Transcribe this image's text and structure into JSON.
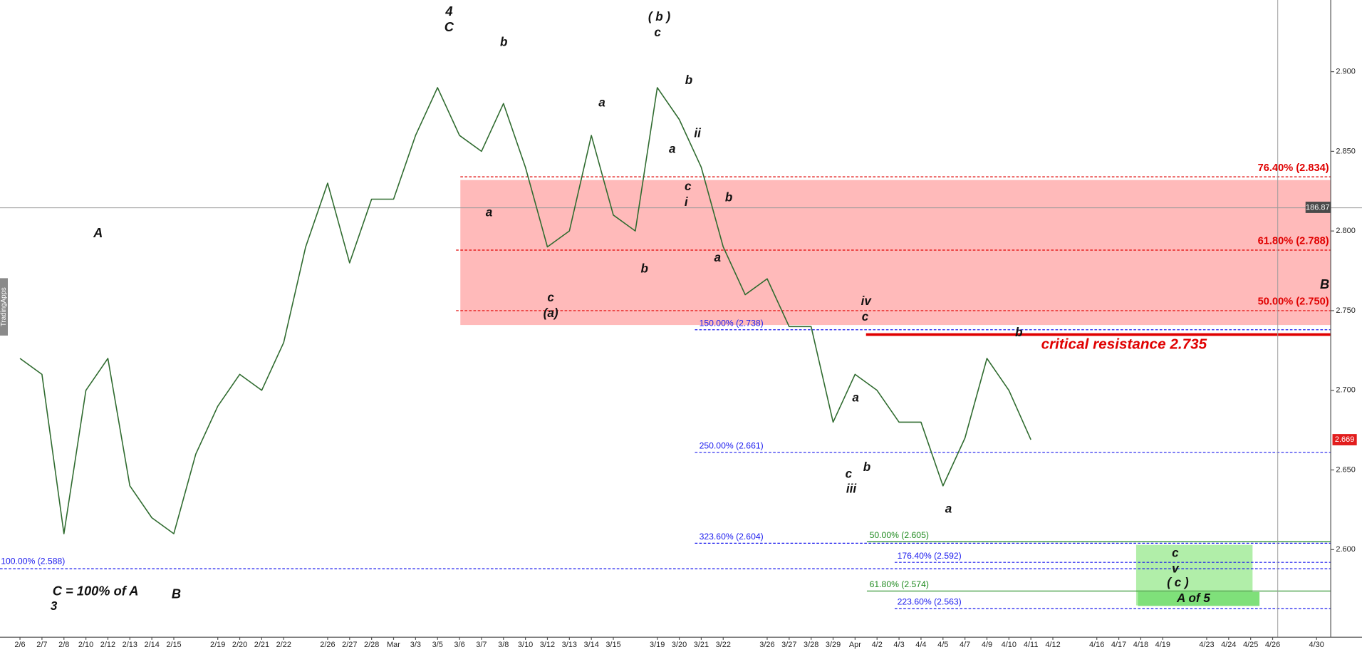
{
  "chart_data": {
    "type": "line",
    "categories": [
      "2/6",
      "2/7",
      "2/8",
      "2/10",
      "2/12",
      "2/13",
      "2/14",
      "2/15",
      null,
      "2/19",
      "2/20",
      "2/21",
      "2/22",
      null,
      "2/26",
      "2/27",
      "2/28",
      "Mar",
      "3/3",
      "3/5",
      "3/6",
      "3/7",
      "3/8",
      "3/10",
      "3/12",
      "3/13",
      "3/14",
      "3/15",
      null,
      "3/19",
      "3/20",
      "3/21",
      "3/22",
      null,
      "3/26",
      "3/27",
      "3/28",
      "3/29",
      "Apr",
      "4/2",
      "4/3",
      "4/4",
      "4/5",
      "4/7",
      "4/9",
      "4/10",
      "4/11",
      "4/12",
      null,
      "4/16",
      "4/17",
      "4/18",
      "4/19",
      null,
      "4/23",
      "4/24",
      "4/25",
      "4/26",
      null,
      "4/30"
    ],
    "values": [
      2.72,
      2.71,
      2.61,
      2.7,
      2.72,
      2.64,
      2.62,
      2.61,
      2.66,
      2.69,
      2.71,
      2.7,
      2.73,
      2.79,
      2.83,
      2.78,
      2.82,
      2.82,
      2.86,
      2.89,
      2.86,
      2.85,
      2.88,
      2.84,
      2.79,
      2.8,
      2.86,
      2.81,
      2.8,
      2.89,
      2.87,
      2.84,
      2.79,
      2.76,
      2.77,
      2.74,
      2.74,
      2.68,
      2.71,
      2.7,
      2.68,
      2.68,
      2.64,
      2.67,
      2.72,
      2.7,
      2.669,
      null,
      null,
      null,
      null,
      null,
      null,
      null,
      null,
      null,
      null,
      null,
      null,
      null
    ],
    "color": "#2f6b2f",
    "ylim": [
      2.545,
      2.945
    ],
    "yticks": [
      {
        "value": 2.6,
        "label": "2.600"
      },
      {
        "value": 2.65,
        "label": "2.650"
      },
      {
        "value": 2.7,
        "label": "2.700"
      },
      {
        "value": 2.75,
        "label": "2.750"
      },
      {
        "value": 2.8,
        "label": "2.800"
      },
      {
        "value": 2.85,
        "label": "2.850"
      },
      {
        "value": 2.9,
        "label": "2.900"
      }
    ],
    "levels": [
      {
        "label": "76.40% (2.834)",
        "value": 2.834,
        "color": "#e00000",
        "style": "dashed"
      },
      {
        "label": "61.80% (2.788)",
        "value": 2.788,
        "color": "#e00000",
        "style": "dashed"
      },
      {
        "label": "50.00% (2.750)",
        "value": 2.75,
        "color": "#e00000",
        "style": "dashed"
      },
      {
        "label": "150.00% (2.738)",
        "value": 2.738,
        "color": "#1a1aee",
        "style": "dashed"
      },
      {
        "label": "250.00% (2.661)",
        "value": 2.661,
        "color": "#1a1aee",
        "style": "dashed"
      },
      {
        "label": "323.60% (2.604)",
        "value": 2.604,
        "color": "#1a1aee",
        "style": "dashed"
      },
      {
        "label": "176.40% (2.592)",
        "value": 2.592,
        "color": "#1a1aee",
        "style": "dashed"
      },
      {
        "label": "223.60% (2.563)",
        "value": 2.563,
        "color": "#1a1aee",
        "style": "dashed"
      },
      {
        "label": "100.00% (2.588)",
        "value": 2.588,
        "color": "#1a1aee",
        "style": "dashed"
      },
      {
        "label": "50.00% (2.605)",
        "value": 2.605,
        "color": "#1f8a1f",
        "style": "solid"
      },
      {
        "label": "61.80% (2.574)",
        "value": 2.574,
        "color": "#1f8a1f",
        "style": "solid"
      },
      {
        "label": "critical resistance 2.735",
        "value": 2.735,
        "color": "#e00000",
        "style": "thick"
      }
    ],
    "zones": [
      {
        "ylim": [
          2.741,
          2.832
        ],
        "color": "#ffb3b3"
      },
      {
        "ylim": [
          2.565,
          2.603
        ],
        "color": "#a8eca0"
      }
    ],
    "annotations": [
      "4",
      "C",
      "b",
      "( b )",
      "c",
      "a",
      "b",
      "ii",
      "a",
      "c",
      "i",
      "b",
      "a",
      "A",
      "a",
      "b",
      "c",
      "(a)",
      "iv",
      "c",
      "B",
      "b",
      "a",
      "c",
      "b",
      "iii",
      "a",
      "C = 100% of A",
      "3",
      "B",
      "c",
      "v",
      "( c )",
      "A of 5"
    ],
    "last_price": 2.669,
    "crosshair_label": "186.87",
    "watermark": "TradingApps"
  }
}
